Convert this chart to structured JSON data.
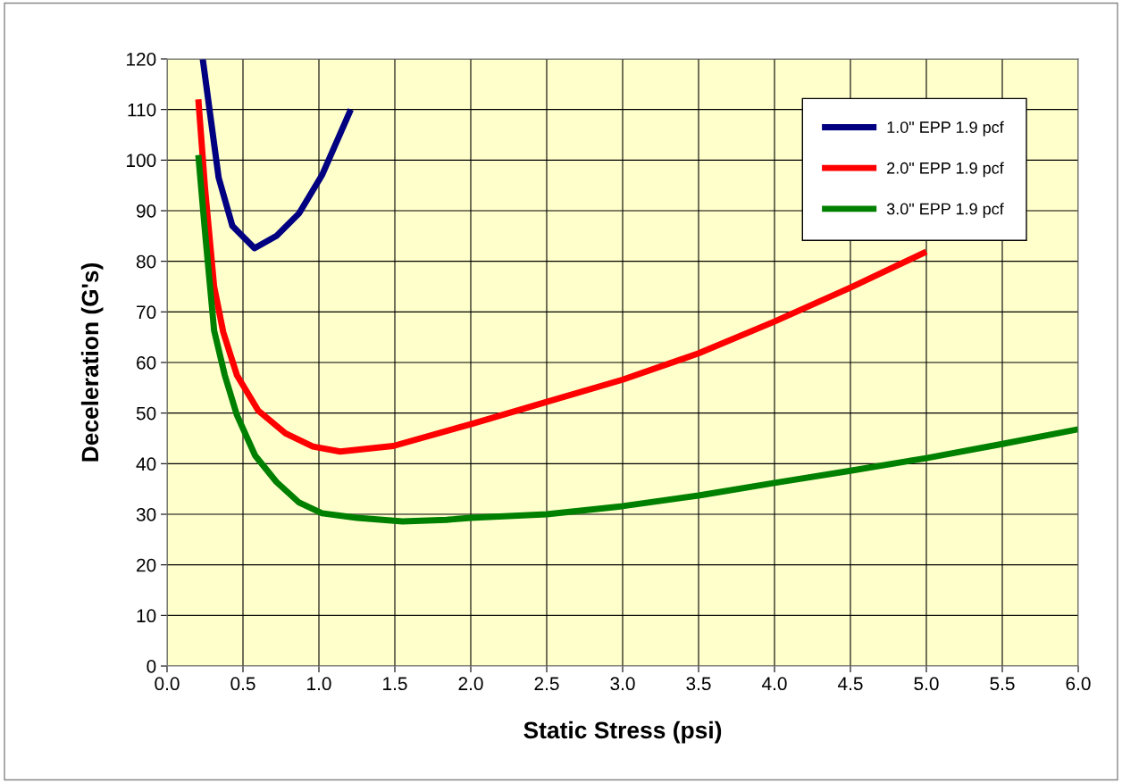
{
  "chart_data": {
    "type": "line",
    "xlabel": "Static Stress (psi)",
    "ylabel": "Deceleration (G's)",
    "xlim": [
      0,
      6
    ],
    "ylim": [
      0,
      120
    ],
    "xticks": [
      {
        "value": 0,
        "label": "0.0"
      },
      0.5,
      {
        "value": 1,
        "label": "1.0"
      },
      1.5,
      {
        "value": 2,
        "label": "2.0"
      },
      2.5,
      {
        "value": 3,
        "label": "3.0"
      },
      3.5,
      {
        "value": 4,
        "label": "4.0"
      },
      4.5,
      {
        "value": 5,
        "label": "5.0"
      },
      5.5,
      {
        "value": 6,
        "label": "6.0"
      }
    ],
    "yticks": [
      0,
      10,
      20,
      30,
      40,
      50,
      60,
      70,
      80,
      90,
      100,
      110,
      120
    ],
    "grid": true,
    "legend": "top right",
    "marker": "none",
    "line_style": "solid",
    "series": [
      {
        "name": "1.0\" EPP 1.9 pcf",
        "color": "#000080",
        "x": [
          0.235,
          0.34,
          0.43,
          0.576,
          0.72,
          0.87,
          1.02,
          1.21
        ],
        "values": [
          120,
          96.5,
          87,
          82.6,
          85,
          89.5,
          97,
          110
        ]
      },
      {
        "name": "2.0\" EPP 1.9 pcf",
        "color": "#ff0000",
        "x": [
          0.206,
          0.25,
          0.31,
          0.37,
          0.46,
          0.6,
          0.78,
          0.96,
          1.14,
          1.49,
          2.0,
          2.5,
          3.0,
          3.5,
          4.0,
          4.5,
          5.0
        ],
        "values": [
          112,
          94.5,
          75,
          66,
          57.5,
          50.5,
          46,
          43.4,
          42.4,
          43.5,
          47.8,
          52.2,
          56.6,
          61.8,
          68.1,
          74.8,
          81.9
        ]
      },
      {
        "name": "3.0\" EPP 1.9 pcf",
        "color": "#008000",
        "x": [
          0.206,
          0.25,
          0.31,
          0.38,
          0.46,
          0.58,
          0.72,
          0.87,
          1.02,
          1.25,
          1.55,
          1.84,
          2.0,
          2.5,
          3.0,
          3.5,
          4.0,
          4.5,
          5.0,
          5.5,
          6.0
        ],
        "values": [
          101,
          85.8,
          66.3,
          57.5,
          49.6,
          41.6,
          36.4,
          32.3,
          30.2,
          29.3,
          28.6,
          28.9,
          29.3,
          30.0,
          31.6,
          33.7,
          36.2,
          38.6,
          41.1,
          43.9,
          46.8
        ]
      }
    ]
  }
}
